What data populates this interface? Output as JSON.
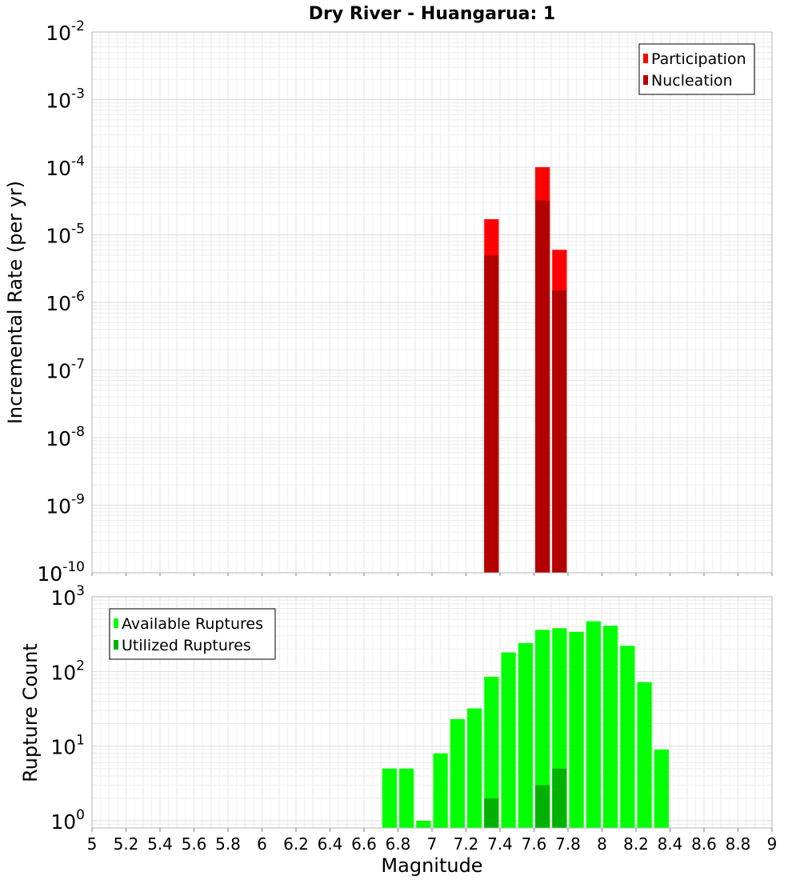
{
  "chart_data": [
    {
      "type": "bar",
      "title": "Dry River - Huangarua: 1",
      "xlabel": "",
      "ylabel": "Incremental Rate (per yr)",
      "yscale": "log",
      "ylim": [
        1e-10,
        0.01
      ],
      "xlim": [
        5,
        9
      ],
      "y_tick_exponents": [
        -2,
        -3,
        -4,
        -5,
        -6,
        -7,
        -8,
        -9,
        -10
      ],
      "legend_position": "top-right",
      "bin_width": 0.1,
      "series": [
        {
          "name": "Participation",
          "color": "#ff0000",
          "points": [
            {
              "x": 7.35,
              "y": 1.7e-05
            },
            {
              "x": 7.65,
              "y": 0.0001
            },
            {
              "x": 7.75,
              "y": 6e-06
            }
          ]
        },
        {
          "name": "Nucleation",
          "color": "#b20000",
          "points": [
            {
              "x": 7.35,
              "y": 5e-06
            },
            {
              "x": 7.65,
              "y": 3.2e-05
            },
            {
              "x": 7.75,
              "y": 1.5e-06
            }
          ]
        }
      ]
    },
    {
      "type": "bar",
      "title": "",
      "xlabel": "Magnitude",
      "ylabel": "Rupture Count",
      "yscale": "log",
      "ylim": [
        0.8,
        1000
      ],
      "xlim": [
        5,
        9
      ],
      "y_tick_exponents": [
        3,
        2,
        1,
        0
      ],
      "legend_position": "top-left",
      "bin_width": 0.1,
      "x_ticks": [
        "5",
        "5.2",
        "5.4",
        "5.6",
        "5.8",
        "6",
        "6.2",
        "6.4",
        "6.6",
        "6.8",
        "7",
        "7.2",
        "7.4",
        "7.6",
        "7.8",
        "8",
        "8.2",
        "8.4",
        "8.6",
        "8.8",
        "9"
      ],
      "series": [
        {
          "name": "Available Ruptures",
          "color": "#00ff00",
          "points": [
            {
              "x": 6.75,
              "y": 5
            },
            {
              "x": 6.85,
              "y": 5
            },
            {
              "x": 6.95,
              "y": 1
            },
            {
              "x": 7.05,
              "y": 8
            },
            {
              "x": 7.15,
              "y": 23
            },
            {
              "x": 7.25,
              "y": 32
            },
            {
              "x": 7.35,
              "y": 85
            },
            {
              "x": 7.45,
              "y": 180
            },
            {
              "x": 7.55,
              "y": 240
            },
            {
              "x": 7.65,
              "y": 360
            },
            {
              "x": 7.75,
              "y": 380
            },
            {
              "x": 7.85,
              "y": 340
            },
            {
              "x": 7.95,
              "y": 470
            },
            {
              "x": 8.05,
              "y": 410
            },
            {
              "x": 8.15,
              "y": 220
            },
            {
              "x": 8.25,
              "y": 72
            },
            {
              "x": 8.35,
              "y": 9
            }
          ]
        },
        {
          "name": "Utilized Ruptures",
          "color": "#00b200",
          "points": [
            {
              "x": 7.35,
              "y": 2
            },
            {
              "x": 7.65,
              "y": 3
            },
            {
              "x": 7.75,
              "y": 5
            }
          ]
        }
      ]
    }
  ]
}
